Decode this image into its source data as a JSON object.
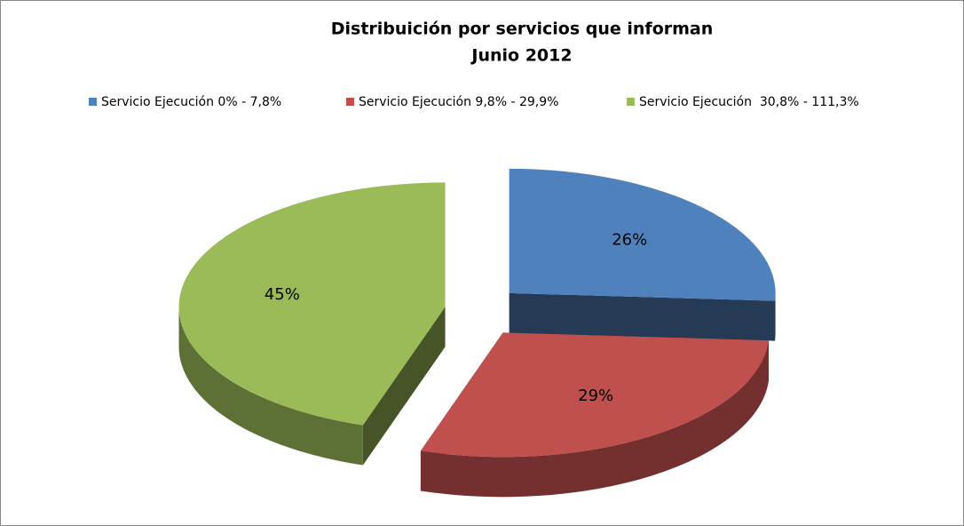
{
  "chart_data": {
    "type": "pie",
    "title": "Distribuición por servicios que informan",
    "subtitle": "Junio 2012",
    "series": [
      {
        "name": "Servicio Ejecución 0% - 7,8%",
        "color": "#4f81bd"
      },
      {
        "name": "Servicio Ejecución 9,8% - 29,9%",
        "color": "#c0504d"
      },
      {
        "name": "Servicio Ejecución  30,8% - 111,3%",
        "color": "#9bbb59"
      }
    ],
    "values": [
      26,
      29,
      45
    ],
    "value_labels": [
      "26%",
      "29%",
      "45%"
    ],
    "legend": "top"
  }
}
